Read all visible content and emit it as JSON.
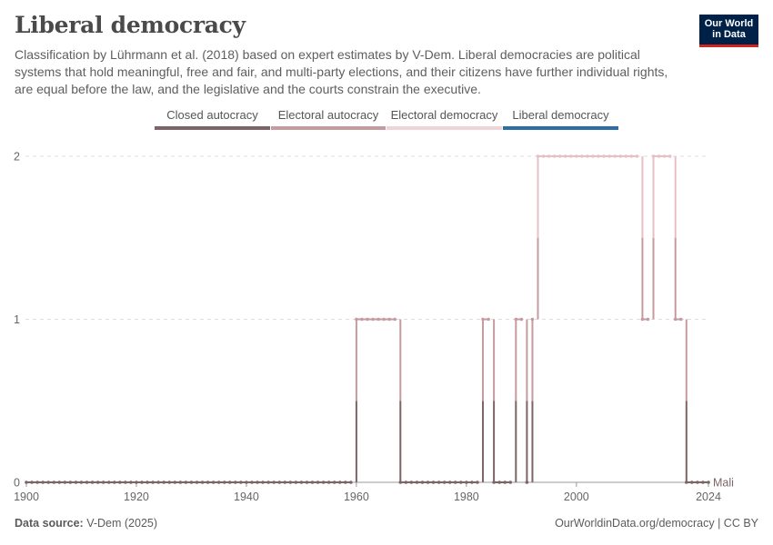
{
  "header": {
    "title": "Liberal democracy",
    "subtitle": "Classification by Lührmann et al. (2018) based on expert estimates by V-Dem. Liberal democracies are political systems that hold meaningful, free and fair, and multi-party elections, and their citizens have further individual rights, are equal before the law, and the legislative and the courts constrain the executive.",
    "logo_line1": "Our World",
    "logo_line2": "in Data"
  },
  "legend": [
    {
      "label": "Closed autocracy",
      "color": "#7e6466"
    },
    {
      "label": "Electoral autocracy",
      "color": "#c59b9f"
    },
    {
      "label": "Electoral democracy",
      "color": "#f0d3d7"
    },
    {
      "label": "Liberal democracy",
      "color": "#2c6ea8"
    }
  ],
  "footer": {
    "source_label": "Data source:",
    "source_value": "V-Dem (2025)",
    "url": "OurWorldinData.org/democracy | CC BY"
  },
  "chart_data": {
    "type": "line",
    "title": "Liberal democracy",
    "series": [
      {
        "name": "Mali",
        "segments": [
          {
            "years": [
              1900,
              1959
            ],
            "value": 0
          },
          {
            "years": [
              1960,
              1967
            ],
            "value": 1
          },
          {
            "years": [
              1968,
              1982
            ],
            "value": 0
          },
          {
            "years": [
              1983,
              1984
            ],
            "value": 1
          },
          {
            "years": [
              1985,
              1988
            ],
            "value": 0
          },
          {
            "years": [
              1989,
              1990
            ],
            "value": 1
          },
          {
            "years": [
              1991,
              1991
            ],
            "value": 0
          },
          {
            "years": [
              1992,
              1992
            ],
            "value": 1
          },
          {
            "years": [
              1993,
              2011
            ],
            "value": 2
          },
          {
            "years": [
              2012,
              2013
            ],
            "value": 1
          },
          {
            "years": [
              2014,
              2017
            ],
            "value": 2
          },
          {
            "years": [
              2018,
              2019
            ],
            "value": 1
          },
          {
            "years": [
              2020,
              2024
            ],
            "value": 0
          }
        ]
      }
    ],
    "x_ticks": [
      "1900",
      "1920",
      "1940",
      "1960",
      "1980",
      "2000",
      "2024"
    ],
    "y_ticks": [
      "0",
      "1",
      "2"
    ],
    "xlim": [
      1900,
      2024
    ],
    "ylim": [
      0,
      2
    ],
    "grid": "horizontal-dashed",
    "series_label": "Mali",
    "level_colors": {
      "0": "#7e6466",
      "1": "#c59b9f",
      "2": "#e6c0c5"
    }
  }
}
